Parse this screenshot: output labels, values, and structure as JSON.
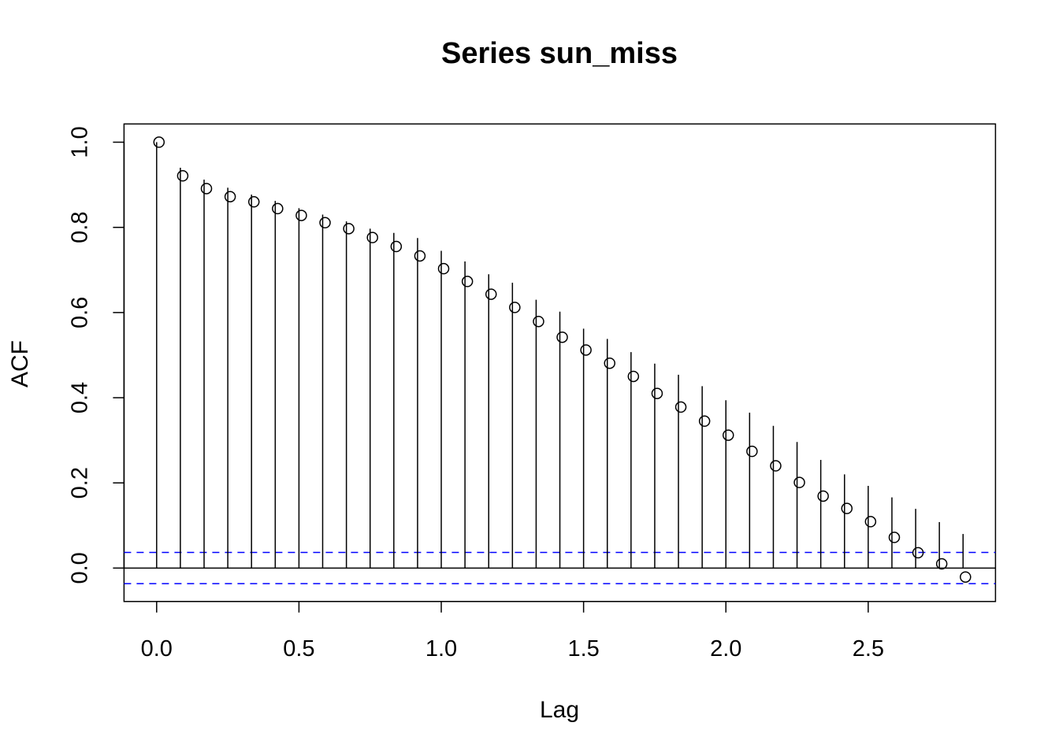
{
  "chart_data": {
    "type": "scatter",
    "title": "Series  sun_miss",
    "xlabel": "Lag",
    "ylabel": "ACF",
    "xlim": [
      -0.1146,
      2.9472
    ],
    "ylim": [
      -0.0785,
      1.0428
    ],
    "x_ticks": [
      "0.0",
      "0.5",
      "1.0",
      "1.5",
      "2.0",
      "2.5"
    ],
    "y_ticks": [
      "0.0",
      "0.2",
      "0.4",
      "0.6",
      "0.8",
      "1.0"
    ],
    "zero_line": 0,
    "confidence_bounds": [
      0.0366,
      -0.0366
    ],
    "series": [
      {
        "name": "lines",
        "x": [
          0.0,
          0.0833,
          0.1667,
          0.25,
          0.3333,
          0.4167,
          0.5,
          0.5833,
          0.6667,
          0.75,
          0.8333,
          0.9167,
          1.0,
          1.0833,
          1.1667,
          1.25,
          1.3333,
          1.4167,
          1.5,
          1.5833,
          1.6667,
          1.75,
          1.8333,
          1.9167,
          2.0,
          2.0833,
          2.1667,
          2.25,
          2.3333,
          2.4167,
          2.5,
          2.5833,
          2.6667,
          2.75,
          2.8333
        ],
        "y": [
          1.0,
          0.94,
          0.912,
          0.893,
          0.877,
          0.862,
          0.845,
          0.83,
          0.814,
          0.797,
          0.787,
          0.775,
          0.745,
          0.72,
          0.69,
          0.67,
          0.63,
          0.602,
          0.562,
          0.538,
          0.507,
          0.48,
          0.454,
          0.427,
          0.394,
          0.365,
          0.334,
          0.296,
          0.254,
          0.22,
          0.193,
          0.166,
          0.139,
          0.108,
          0.08
        ]
      },
      {
        "name": "points",
        "x": [
          0.0083,
          0.0917,
          0.175,
          0.2583,
          0.3417,
          0.425,
          0.5083,
          0.5917,
          0.675,
          0.7583,
          0.8417,
          0.925,
          1.0083,
          1.0917,
          1.175,
          1.2583,
          1.3417,
          1.425,
          1.5083,
          1.5917,
          1.675,
          1.7583,
          1.8417,
          1.925,
          2.0083,
          2.0917,
          2.175,
          2.2583,
          2.3417,
          2.425,
          2.5083,
          2.5917,
          2.675,
          2.7583,
          2.8417
        ],
        "y": [
          1.0,
          0.921,
          0.891,
          0.872,
          0.86,
          0.844,
          0.828,
          0.811,
          0.797,
          0.776,
          0.755,
          0.733,
          0.703,
          0.673,
          0.643,
          0.612,
          0.579,
          0.542,
          0.512,
          0.481,
          0.45,
          0.41,
          0.378,
          0.345,
          0.312,
          0.274,
          0.24,
          0.201,
          0.169,
          0.14,
          0.109,
          0.072,
          0.036,
          0.01,
          -0.021
        ]
      }
    ],
    "colors": {
      "axes": "#000000",
      "bounds": "#0000ff",
      "background": "#ffffff"
    },
    "grid": false,
    "legend": "none"
  }
}
